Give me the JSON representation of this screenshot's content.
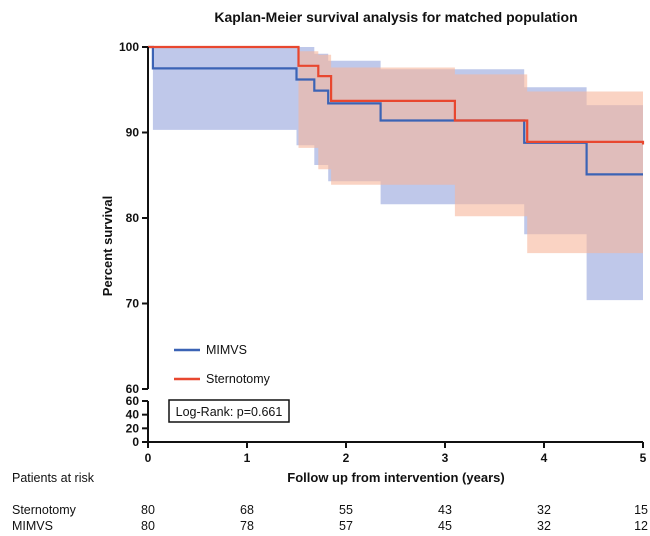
{
  "chart_data": {
    "type": "line",
    "title": "Kaplan-Meier survival analysis for matched population",
    "xlabel": "Follow up from intervention (years)",
    "ylabel": "Percent survival",
    "xlim": [
      0,
      5
    ],
    "x_ticks": [
      "0",
      "1",
      "2",
      "3",
      "4",
      "5"
    ],
    "upper_ylim": [
      60,
      100
    ],
    "upper_ticks": [
      "60",
      "70",
      "80",
      "90",
      "100"
    ],
    "lower_ylim": [
      0,
      60
    ],
    "lower_ticks": [
      "0",
      "20",
      "40",
      "60"
    ],
    "grid": false,
    "legend_position": "lower-left",
    "annotation": "Log-Rank: p=0.661",
    "series": [
      {
        "name": "MIMVS",
        "color": "#3b63b5",
        "band_color": "#a9b6e3",
        "steps": [
          [
            0,
            100
          ],
          [
            0.05,
            97.5
          ],
          [
            1.5,
            96.2
          ],
          [
            1.68,
            94.9
          ],
          [
            1.82,
            93.4
          ],
          [
            2.35,
            91.4
          ],
          [
            3.8,
            88.8
          ],
          [
            4.43,
            85.1
          ],
          [
            5,
            85.1
          ]
        ],
        "band": [
          [
            0,
            100,
            100
          ],
          [
            0.05,
            90.3,
            100
          ],
          [
            1.5,
            88.5,
            100
          ],
          [
            1.68,
            86.2,
            99.2
          ],
          [
            1.82,
            84.3,
            98.4
          ],
          [
            2.35,
            81.6,
            97.4
          ],
          [
            3.8,
            78.1,
            95.3
          ],
          [
            4.43,
            70.4,
            93.2
          ],
          [
            5,
            70.4,
            93.2
          ]
        ]
      },
      {
        "name": "Sternotomy",
        "color": "#e8472f",
        "band_color": "#f6b59b",
        "steps": [
          [
            0,
            100
          ],
          [
            1.52,
            97.8
          ],
          [
            1.72,
            96.6
          ],
          [
            1.85,
            93.7
          ],
          [
            3.1,
            91.4
          ],
          [
            3.83,
            88.9
          ],
          [
            5,
            88.6
          ]
        ],
        "band": [
          [
            0,
            100,
            100
          ],
          [
            1.52,
            88.2,
            99.5
          ],
          [
            1.72,
            85.7,
            99.1
          ],
          [
            1.85,
            83.9,
            97.6
          ],
          [
            3.1,
            80.2,
            96.8
          ],
          [
            3.83,
            75.9,
            94.8
          ],
          [
            5,
            75.9,
            94.8
          ]
        ]
      }
    ]
  },
  "risk_table": {
    "header": "Patients at risk",
    "rows": [
      {
        "name": "Sternotomy",
        "values": [
          "80",
          "68",
          "55",
          "43",
          "32",
          "15"
        ]
      },
      {
        "name": "MIMVS",
        "values": [
          "80",
          "78",
          "57",
          "45",
          "32",
          "12"
        ]
      }
    ]
  }
}
